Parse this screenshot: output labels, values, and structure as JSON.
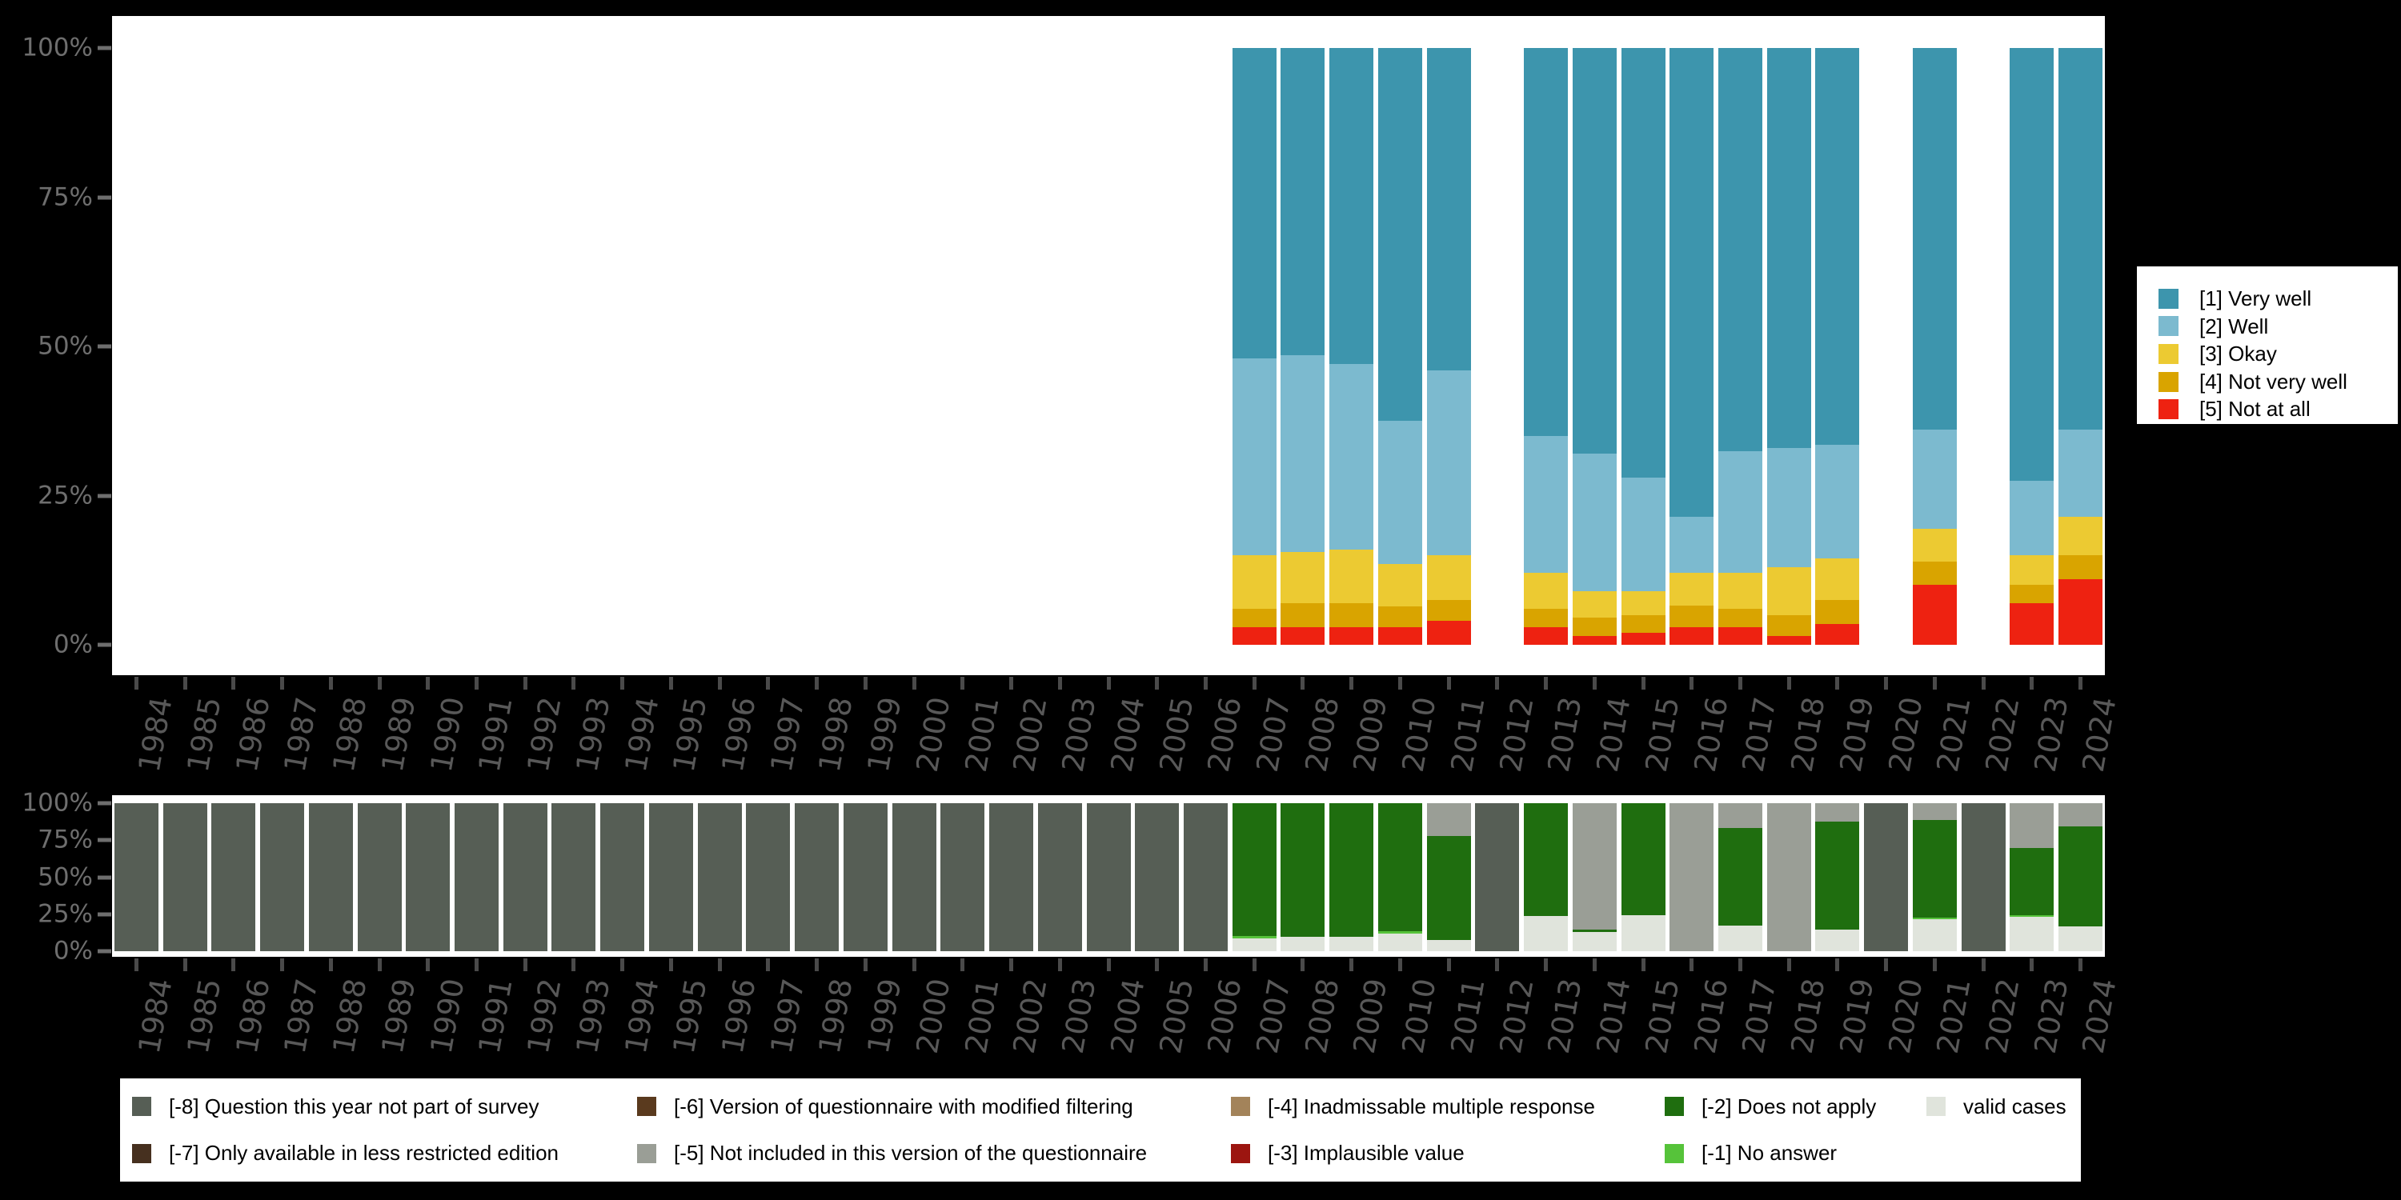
{
  "page": {
    "background": "#000000",
    "plot_background": "#ffffff"
  },
  "axis": {
    "years": [
      "1984",
      "1985",
      "1986",
      "1987",
      "1988",
      "1989",
      "1990",
      "1991",
      "1992",
      "1993",
      "1994",
      "1995",
      "1996",
      "1997",
      "1998",
      "1999",
      "2000",
      "2001",
      "2002",
      "2003",
      "2004",
      "2005",
      "2006",
      "2007",
      "2008",
      "2009",
      "2010",
      "2011",
      "2012",
      "2013",
      "2014",
      "2015",
      "2016",
      "2017",
      "2018",
      "2019",
      "2020",
      "2021",
      "2022",
      "2023",
      "2024"
    ],
    "y_tick_labels": [
      "100%",
      "75%",
      "50%",
      "25%",
      "0%"
    ]
  },
  "chart_data": [
    {
      "name": "answer-distribution",
      "type": "bar",
      "stacked": true,
      "unit": "percent",
      "ylim": [
        0,
        100
      ],
      "grid": false,
      "legend_position": "right",
      "x_axis": "years 1984-2024, bars only for years with data",
      "series": [
        {
          "label": "[1] Very well",
          "color": "#3d95ad",
          "values": {
            "2007": 52,
            "2008": 51.5,
            "2009": 53,
            "2010": 62.5,
            "2011": 54,
            "2013": 65,
            "2014": 68,
            "2015": 72,
            "2016": 78.5,
            "2017": 67.5,
            "2018": 67,
            "2019": 66.5,
            "2021": 64,
            "2023": 72.5,
            "2024": 64
          }
        },
        {
          "label": "[2] Well",
          "color": "#7cbacf",
          "values": {
            "2007": 33,
            "2008": 33,
            "2009": 31,
            "2010": 24,
            "2011": 31,
            "2013": 23,
            "2014": 23,
            "2015": 19,
            "2016": 9.5,
            "2017": 20.5,
            "2018": 20,
            "2019": 19,
            "2021": 16.5,
            "2023": 12.5,
            "2024": 14.5
          }
        },
        {
          "label": "[3] Okay",
          "color": "#ecca32",
          "values": {
            "2007": 9,
            "2008": 8.5,
            "2009": 9,
            "2010": 7,
            "2011": 7.5,
            "2013": 6,
            "2014": 4.5,
            "2015": 4,
            "2016": 5.5,
            "2017": 6,
            "2018": 8,
            "2019": 7,
            "2021": 5.5,
            "2023": 5,
            "2024": 6.5
          }
        },
        {
          "label": "[4] Not very well",
          "color": "#d9a400",
          "values": {
            "2007": 3,
            "2008": 4,
            "2009": 4,
            "2010": 3.5,
            "2011": 3.5,
            "2013": 3,
            "2014": 3,
            "2015": 3,
            "2016": 3.5,
            "2017": 3,
            "2018": 3.5,
            "2019": 4,
            "2021": 4,
            "2023": 3,
            "2024": 4
          }
        },
        {
          "label": "[5] Not at all",
          "color": "#ee2211",
          "values": {
            "2007": 3,
            "2008": 3,
            "2009": 3,
            "2010": 3,
            "2011": 4,
            "2013": 3,
            "2014": 1.5,
            "2015": 2,
            "2016": 3,
            "2017": 3,
            "2018": 1.5,
            "2019": 3.5,
            "2021": 10,
            "2023": 7,
            "2024": 11
          }
        }
      ]
    },
    {
      "name": "missing-values-distribution",
      "type": "bar",
      "stacked": true,
      "unit": "percent",
      "ylim": [
        0,
        100
      ],
      "grid": false,
      "legend_position": "bottom",
      "x_axis": "years 1984-2024, one bar per year",
      "series": [
        {
          "label": "[-8] Question this year not part of survey",
          "color": "#565e55",
          "values": {
            "1984": 100,
            "1985": 100,
            "1986": 100,
            "1987": 100,
            "1988": 100,
            "1989": 100,
            "1990": 100,
            "1991": 100,
            "1992": 100,
            "1993": 100,
            "1994": 100,
            "1995": 100,
            "1996": 100,
            "1997": 100,
            "1998": 100,
            "1999": 100,
            "2000": 100,
            "2001": 100,
            "2002": 100,
            "2003": 100,
            "2004": 100,
            "2005": 100,
            "2006": 100,
            "2012": 100,
            "2020": 100,
            "2022": 100
          }
        },
        {
          "label": "[-7] Only available in less restricted edition",
          "color": "#46301f",
          "values": {}
        },
        {
          "label": "[-6] Version of questionnaire with modified filtering",
          "color": "#5a3a1e",
          "values": {}
        },
        {
          "label": "[-5] Not included in this version of the questionnaire",
          "color": "#9a9e96",
          "values": {
            "2011": 22,
            "2014": 85.5,
            "2016": 100,
            "2017": 16.5,
            "2018": 100,
            "2019": 12.5,
            "2021": 11.5,
            "2023": 30,
            "2024": 15.5
          }
        },
        {
          "label": "[-4] Inadmissable multiple response",
          "color": "#a3835a",
          "values": {}
        },
        {
          "label": "[-3] Implausible value",
          "color": "#9c1510",
          "values": {}
        },
        {
          "label": "[-2] Does not apply",
          "color": "#1f6e0f",
          "values": {
            "2007": 89.5,
            "2008": 90.5,
            "2009": 90,
            "2010": 86.5,
            "2011": 70.5,
            "2013": 76,
            "2014": 1.5,
            "2015": 75.5,
            "2017": 66,
            "2019": 73,
            "2021": 66,
            "2023": 45.5,
            "2024": 67.5
          }
        },
        {
          "label": "[-1] No answer",
          "color": "#56c33a",
          "values": {
            "2007": 2,
            "2010": 1.5,
            "2021": 1,
            "2023": 1
          }
        },
        {
          "label": "valid cases",
          "color": "#e0e4dc",
          "values": {
            "2007": 8.5,
            "2008": 9.5,
            "2009": 10,
            "2010": 12,
            "2011": 7.5,
            "2013": 24,
            "2014": 13,
            "2015": 24.5,
            "2017": 17.5,
            "2019": 14.5,
            "2021": 21.5,
            "2023": 23.5,
            "2024": 17
          }
        }
      ]
    }
  ]
}
